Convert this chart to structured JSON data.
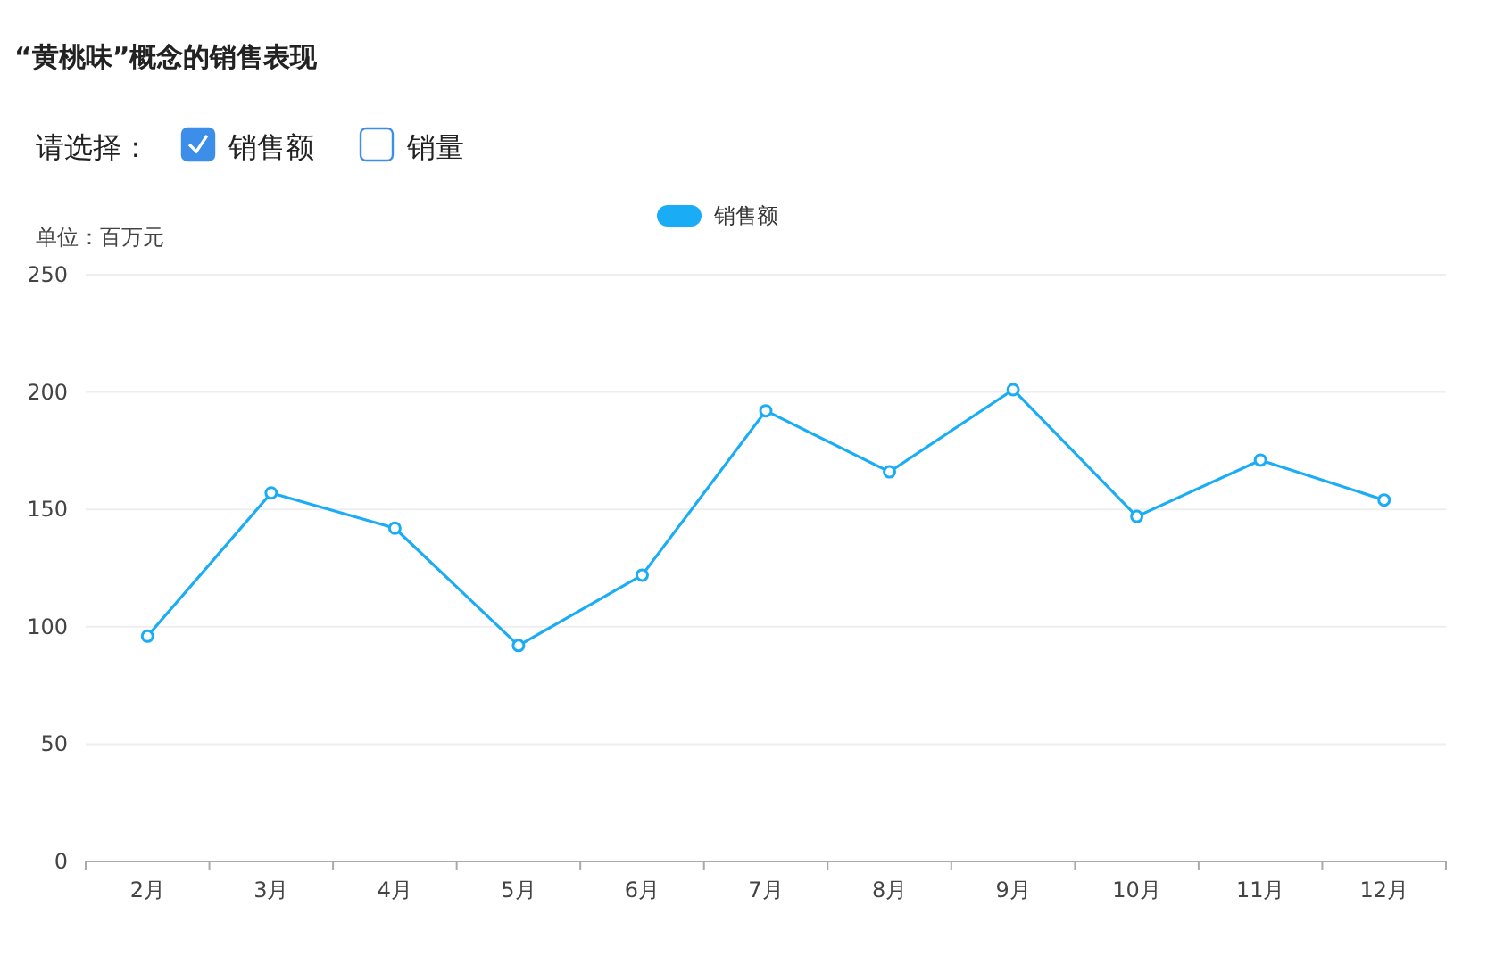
{
  "chart_data": {
    "type": "line",
    "title": "“黄桃味”概念的销售表现",
    "ylabel": "单位：百万元",
    "annotations": [
      "请选择：",
      "销售额",
      "销量"
    ],
    "categories": [
      "2月",
      "3月",
      "4月",
      "5月",
      "6月",
      "7月",
      "8月",
      "9月",
      "10月",
      "11月",
      "12月"
    ],
    "series": [
      {
        "name": "销售额",
        "color": "#1aadf5",
        "values": [
          96,
          157,
          142,
          92,
          122,
          192,
          166,
          201,
          147,
          171,
          154
        ]
      }
    ],
    "ylim": [
      0,
      250
    ],
    "yticks": [
      0,
      50,
      100,
      150,
      200,
      250
    ],
    "grid": "y",
    "legend": "top",
    "marker": "circle",
    "line_style": "solid"
  }
}
